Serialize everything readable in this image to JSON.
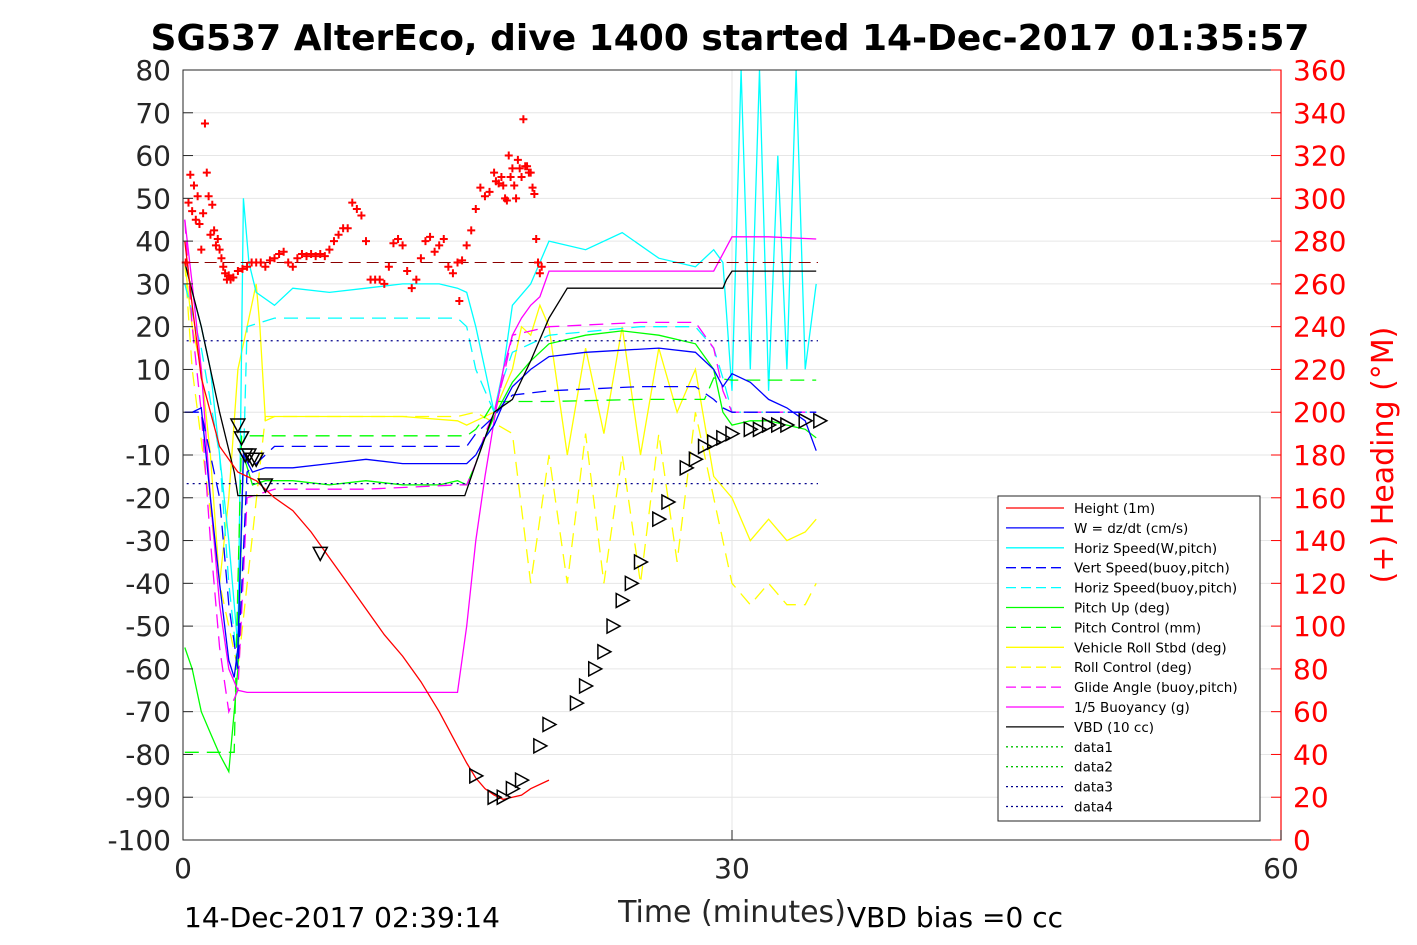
{
  "chart_data": {
    "type": "line",
    "title": "SG537 AlterEco, dive 1400 started 14-Dec-2017 01:35:57",
    "xlabel": "Time (minutes)",
    "ylabel_right": "(+) Heading (°M)",
    "footer_left": "14-Dec-2017 02:39:14",
    "footer_right": "VBD bias =0 cc",
    "xlim": [
      0,
      60
    ],
    "ylim": [
      -100,
      80
    ],
    "ylim_right": [
      0,
      360
    ],
    "x_ticks": [
      0,
      30,
      60
    ],
    "y_ticks": [
      -100,
      -90,
      -80,
      -70,
      -60,
      -50,
      -40,
      -30,
      -20,
      -10,
      0,
      10,
      20,
      30,
      40,
      50,
      60,
      70,
      80
    ],
    "y_ticks_right": [
      0,
      20,
      40,
      60,
      80,
      100,
      120,
      140,
      160,
      180,
      200,
      220,
      240,
      260,
      280,
      300,
      320,
      340,
      360
    ],
    "grid": true,
    "legend_position": "bottom-right",
    "colors": {
      "height": "#ff0000",
      "w": "#0000ff",
      "horiz_w": "#00ffff",
      "vert_buoy": "#0000ff",
      "horiz_buoy": "#00ffff",
      "pitch": "#00ff00",
      "pitch_ctrl": "#00ff00",
      "roll": "#ffff00",
      "roll_ctrl": "#ffff00",
      "glide": "#ff00ff",
      "buoy": "#ff00ff",
      "vbd": "#000000",
      "heading": "#ff0000",
      "axis_right": "#ff0000"
    },
    "legend": [
      "Height (1m)",
      "W = dz/dt (cm/s)",
      "Horiz Speed(W,pitch)",
      "Vert Speed(buoy,pitch)",
      "Horiz Speed(buoy,pitch)",
      "Pitch Up (deg)",
      "Pitch Control (mm)",
      "Vehicle Roll Stbd (deg)",
      "Roll Control (deg)",
      "Glide Angle (buoy,pitch)",
      "1/5 Buoyancy (g)",
      "VBD (10 cc)",
      "data1",
      "data2",
      "data3",
      "data4"
    ],
    "series": [
      {
        "key": "vbd",
        "x": [
          0.1,
          1.0,
          2.0,
          2.8,
          3.0,
          5.0,
          10.0,
          15.0,
          15.4,
          16.0,
          17.0,
          18.0,
          19.0,
          20.0,
          21.0,
          22.0,
          23.0,
          24.0,
          25.0,
          26.0,
          27.0,
          28.0,
          29.5,
          29.7,
          30.0,
          32.0,
          34.6
        ],
        "y": [
          35,
          20,
          0,
          -14,
          -19.5,
          -19.5,
          -19.5,
          -19.5,
          -19.5,
          -12,
          0,
          3,
          12,
          22,
          29,
          29,
          29,
          29,
          29,
          29,
          29,
          29,
          29,
          31,
          33,
          33,
          33
        ]
      },
      {
        "key": "buoy",
        "x": [
          0.1,
          0.5,
          1.0,
          1.5,
          2.0,
          2.5,
          3.0,
          3.5,
          5.0,
          10.0,
          15.0,
          15.5,
          16.0,
          16.5,
          17.0,
          17.5,
          18.0,
          18.5,
          19.0,
          19.5,
          20.0,
          22.0,
          26.0,
          29.0,
          30.0,
          32.0,
          34.6
        ],
        "y": [
          45,
          30,
          10,
          -20,
          -45,
          -60,
          -65,
          -65.5,
          -65.5,
          -65.5,
          -65.5,
          -50,
          -30,
          -15,
          -2,
          10,
          18,
          22,
          25,
          27,
          33,
          33,
          33,
          33,
          41,
          41,
          40.5
        ]
      },
      {
        "key": "height",
        "x": [
          0.1,
          0.5,
          1.0,
          2.0,
          3.0,
          4.0,
          5.0,
          6.0,
          7.0,
          8.0,
          9.0,
          10.0,
          11.0,
          12.0,
          13.0,
          14.0,
          15.0,
          15.5,
          16.0,
          16.5,
          17.0,
          17.5,
          18.0,
          18.5,
          19.0,
          20.0
        ],
        "y": [
          40,
          25,
          8,
          -8,
          -14,
          -16,
          -20,
          -23,
          -28,
          -34,
          -40,
          -46,
          -52,
          -57,
          -63,
          -70,
          -78,
          -82,
          -85.5,
          -88,
          -89.5,
          -90.5,
          -90,
          -89.5,
          -88,
          -86
        ]
      },
      {
        "key": "w",
        "x": [
          0.1,
          0.5,
          1.0,
          1.5,
          2.0,
          2.5,
          2.8,
          3.0,
          3.3,
          3.8,
          4.5,
          6.0,
          8.0,
          10.0,
          12.0,
          14.0,
          15.0,
          15.5,
          16.0,
          16.5,
          17.0,
          17.5,
          18.0,
          19.0,
          20.0,
          22.0,
          24.0,
          26.0,
          28.0,
          29.0,
          29.5,
          30.0,
          31.0,
          32.0,
          33.0,
          34.0,
          34.6
        ],
        "y": [
          0,
          0,
          1,
          -20,
          -40,
          -58,
          -62,
          -55,
          -10,
          -14,
          -13,
          -13,
          -12,
          -11,
          -12,
          -12,
          -12,
          -12,
          -10,
          -6,
          -3,
          2,
          6,
          10,
          13,
          14,
          14.5,
          15,
          14,
          10,
          6,
          9,
          7,
          3,
          1,
          -2,
          -9
        ]
      },
      {
        "key": "horiz_w",
        "x": [
          0.1,
          0.5,
          1.0,
          1.5,
          2.0,
          2.5,
          3.0,
          3.3,
          3.6,
          4.0,
          5.0,
          6.0,
          8.0,
          10.0,
          12.0,
          14.0,
          15.0,
          15.5,
          16.0,
          16.5,
          17.0,
          17.5,
          18.0,
          19.0,
          20.0,
          22.0,
          24.0,
          26.0,
          28.0,
          29.0,
          29.5,
          30.0,
          30.5,
          31.0,
          31.5,
          32.0,
          32.5,
          33.0,
          33.5,
          34.0,
          34.6
        ],
        "y": [
          35,
          28,
          20,
          10,
          -10,
          -30,
          -55,
          50,
          35,
          28,
          25,
          29,
          28,
          29,
          30,
          30,
          29,
          28,
          20,
          10,
          0,
          10,
          25,
          30,
          40,
          38,
          42,
          36,
          34,
          38,
          35,
          5,
          80,
          10,
          80,
          5,
          60,
          10,
          80,
          10,
          30
        ]
      },
      {
        "key": "vert_buoy",
        "x": [
          0.1,
          1.0,
          2.0,
          2.5,
          3.0,
          3.5,
          5.0,
          10.0,
          15.0,
          15.5,
          16.0,
          17.0,
          17.5,
          18.0,
          20.0,
          25.0,
          28.0,
          29.0,
          29.5,
          30.0,
          33.0,
          34.6
        ],
        "y": [
          0,
          0,
          -20,
          -45,
          -60,
          -14,
          -8,
          -8,
          -8,
          -8,
          -5,
          -1,
          2,
          4,
          5,
          6,
          6,
          3,
          1,
          0,
          0,
          0
        ]
      },
      {
        "key": "horiz_buoy",
        "x": [
          0.1,
          1.0,
          2.0,
          2.5,
          3.0,
          3.5,
          5.0,
          10.0,
          15.0,
          15.5,
          16.0,
          17.0,
          17.5,
          18.0,
          20.0,
          25.0,
          28.0,
          29.0,
          29.5,
          30.0,
          33.0,
          34.6
        ],
        "y": [
          30,
          15,
          -10,
          -40,
          -60,
          20,
          22,
          22,
          22,
          20,
          10,
          0,
          8,
          14,
          18,
          20,
          20,
          15,
          8,
          0,
          0,
          0
        ]
      },
      {
        "key": "pitch",
        "x": [
          0.1,
          0.5,
          1.0,
          1.5,
          2.0,
          2.5,
          2.8,
          3.0,
          3.3,
          3.8,
          4.5,
          6.0,
          8.0,
          10.0,
          12.0,
          14.0,
          15.0,
          15.5,
          16.0,
          16.5,
          17.0,
          17.5,
          18.0,
          19.0,
          20.0,
          22.0,
          24.0,
          26.0,
          28.0,
          29.0,
          29.5,
          30.0,
          31.0,
          32.0,
          33.0,
          34.0,
          34.6
        ],
        "y": [
          -55,
          -60,
          -70,
          -75,
          -80,
          -84,
          -70,
          -60,
          -10,
          -17,
          -16,
          -16,
          -17,
          -16,
          -17,
          -17,
          -16,
          -17,
          -12,
          -6,
          -1,
          3,
          7,
          12,
          16,
          18,
          19,
          18,
          16,
          10,
          0,
          -3,
          -2,
          -2,
          -3,
          -4,
          -6
        ]
      },
      {
        "key": "pitch_ctrl",
        "x": [
          0.1,
          0.5,
          2.8,
          3.0,
          3.2,
          5.0,
          10.0,
          15.0,
          15.5,
          16.0,
          16.5,
          17.0,
          20.0,
          25.0,
          28.0,
          28.5,
          29.0,
          30.0,
          34.6
        ],
        "y": [
          -79.5,
          -79.5,
          -79.5,
          -40,
          -5.5,
          -5.5,
          -5.5,
          -5.5,
          -5.5,
          -4,
          -1,
          2.5,
          2.5,
          3,
          3,
          3,
          8,
          7.5,
          7.5
        ]
      },
      {
        "key": "roll",
        "x": [
          0.1,
          0.5,
          1.0,
          1.5,
          2.0,
          2.5,
          3.0,
          3.5,
          4.0,
          4.2,
          4.5,
          5.0,
          8.0,
          12.0,
          15.0,
          15.5,
          16.0,
          17.0,
          18.0,
          18.5,
          19.0,
          19.5,
          20.0,
          21.0,
          22.0,
          23.0,
          24.0,
          25.0,
          26.0,
          27.0,
          28.0,
          29.0,
          30.0,
          31.0,
          32.0,
          33.0,
          34.0,
          34.6
        ],
        "y": [
          35,
          20,
          10,
          -10,
          -40,
          -20,
          10,
          20,
          30,
          20,
          -2,
          -1,
          -1,
          -1,
          -2,
          -3,
          -2,
          0,
          10,
          20,
          18,
          25,
          20,
          -10,
          15,
          -5,
          20,
          -10,
          15,
          0,
          10,
          -15,
          -20,
          -30,
          -25,
          -30,
          -28,
          -25
        ]
      },
      {
        "key": "roll_ctrl",
        "x": [
          0.1,
          0.5,
          2.0,
          3.0,
          4.5,
          5.0,
          15.0,
          16.0,
          18.0,
          19.0,
          20.0,
          21.0,
          22.0,
          23.0,
          24.0,
          25.0,
          26.0,
          27.0,
          28.0,
          29.0,
          30.0,
          31.0,
          32.0,
          33.0,
          34.0,
          34.6
        ],
        "y": [
          35,
          10,
          -40,
          -60,
          -1,
          -1,
          -1,
          0,
          -5,
          -40,
          -10,
          -40,
          -5,
          -40,
          -10,
          -40,
          -5,
          -35,
          0,
          -20,
          -40,
          -45,
          -40,
          -45,
          -45,
          -40
        ]
      },
      {
        "key": "glide",
        "x": [
          0.1,
          0.5,
          1.0,
          1.5,
          2.0,
          2.5,
          3.0,
          3.5,
          5.0,
          10.0,
          15.0,
          15.5,
          16.0,
          16.5,
          17.0,
          17.5,
          18.0,
          20.0,
          25.0,
          28.0,
          29.0,
          29.5,
          30.0,
          33.0,
          34.6
        ],
        "y": [
          45,
          20,
          0,
          -30,
          -55,
          -70,
          -65,
          -20,
          -18,
          -18,
          -17,
          -17,
          -12,
          -5,
          0,
          8,
          18,
          20,
          21,
          21,
          15,
          5,
          0,
          0,
          0
        ]
      }
    ],
    "heading_points": [
      [
        0.3,
        270
      ],
      [
        0.6,
        298
      ],
      [
        0.8,
        311
      ],
      [
        1.0,
        294
      ],
      [
        1.2,
        306
      ],
      [
        1.4,
        290
      ],
      [
        1.6,
        301
      ],
      [
        1.8,
        288
      ],
      [
        2.0,
        276
      ],
      [
        2.2,
        293
      ],
      [
        2.4,
        335
      ],
      [
        2.6,
        312
      ],
      [
        2.8,
        301
      ],
      [
        3.0,
        283
      ],
      [
        3.2,
        297
      ],
      [
        3.4,
        285
      ],
      [
        3.6,
        278
      ],
      [
        3.8,
        281
      ],
      [
        4.0,
        276
      ],
      [
        4.2,
        272
      ],
      [
        4.4,
        268
      ],
      [
        4.6,
        265
      ],
      [
        4.8,
        262
      ],
      [
        5.0,
        264
      ],
      [
        5.2,
        262
      ],
      [
        5.5,
        263
      ],
      [
        6.0,
        266
      ],
      [
        6.5,
        267
      ],
      [
        7.0,
        268
      ],
      [
        7.5,
        270
      ],
      [
        8.0,
        270
      ],
      [
        8.5,
        270
      ],
      [
        9.0,
        268
      ],
      [
        9.5,
        271
      ],
      [
        10.0,
        272
      ],
      [
        10.5,
        274
      ],
      [
        11.0,
        275
      ],
      [
        11.5,
        270
      ],
      [
        12.0,
        268
      ],
      [
        12.5,
        272
      ],
      [
        13.0,
        274
      ],
      [
        13.5,
        273
      ],
      [
        14.0,
        274
      ],
      [
        14.5,
        273
      ],
      [
        15.0,
        274
      ],
      [
        15.5,
        273
      ],
      [
        16.0,
        276
      ],
      [
        16.5,
        280
      ],
      [
        17.0,
        283
      ],
      [
        17.5,
        286
      ],
      [
        18.0,
        286
      ],
      [
        18.5,
        298
      ],
      [
        19.0,
        295
      ],
      [
        19.5,
        292
      ],
      [
        20.0,
        280
      ],
      [
        20.5,
        262
      ],
      [
        21.0,
        262
      ],
      [
        21.5,
        262
      ],
      [
        22.0,
        260
      ],
      [
        22.5,
        268
      ],
      [
        23.0,
        279
      ],
      [
        23.5,
        281
      ],
      [
        24.0,
        278
      ],
      [
        24.5,
        266
      ],
      [
        25.0,
        258
      ],
      [
        25.5,
        262
      ],
      [
        26.0,
        272
      ],
      [
        26.5,
        280
      ],
      [
        27.0,
        282
      ],
      [
        27.5,
        275
      ],
      [
        28.0,
        278
      ],
      [
        28.5,
        281
      ],
      [
        29.0,
        268
      ],
      [
        29.5,
        265
      ],
      [
        30.0,
        270
      ],
      [
        30.2,
        252
      ],
      [
        30.5,
        271
      ],
      [
        31.0,
        278
      ],
      [
        31.5,
        285
      ],
      [
        32.0,
        295
      ],
      [
        32.5,
        305
      ],
      [
        33.0,
        301
      ],
      [
        33.5,
        303
      ],
      [
        34.0,
        312
      ],
      [
        34.2,
        308
      ],
      [
        34.5,
        307
      ],
      [
        34.8,
        310
      ],
      [
        35.0,
        306
      ],
      [
        35.2,
        300
      ],
      [
        35.4,
        299
      ],
      [
        35.6,
        320
      ],
      [
        35.8,
        310
      ],
      [
        36.0,
        314
      ],
      [
        36.2,
        306
      ],
      [
        36.4,
        300
      ],
      [
        36.6,
        318
      ],
      [
        36.8,
        314
      ],
      [
        37.0,
        310
      ],
      [
        37.2,
        337
      ],
      [
        37.4,
        315
      ],
      [
        37.6,
        315
      ],
      [
        37.8,
        312
      ],
      [
        38.0,
        312
      ],
      [
        38.2,
        305
      ],
      [
        38.4,
        302
      ],
      [
        38.6,
        281
      ],
      [
        38.8,
        270
      ],
      [
        39.0,
        265
      ],
      [
        39.2,
        268
      ]
    ],
    "markers_down": [
      [
        3.0,
        -3
      ],
      [
        3.2,
        -6
      ],
      [
        3.4,
        -10
      ],
      [
        3.6,
        -10
      ],
      [
        3.8,
        -11
      ],
      [
        4.0,
        -11
      ],
      [
        4.5,
        -17
      ],
      [
        7.5,
        -33
      ]
    ],
    "markers_up": [
      [
        16.0,
        -85
      ],
      [
        17.0,
        -90
      ],
      [
        17.5,
        -90
      ],
      [
        18.0,
        -88
      ],
      [
        18.5,
        -86
      ],
      [
        19.5,
        -78
      ],
      [
        20.0,
        -73
      ],
      [
        21.5,
        -68
      ],
      [
        22.0,
        -64
      ],
      [
        22.5,
        -60
      ],
      [
        23.0,
        -56
      ],
      [
        23.5,
        -50
      ],
      [
        24.0,
        -44
      ],
      [
        24.5,
        -40
      ],
      [
        25.0,
        -35
      ],
      [
        26.0,
        -25
      ],
      [
        26.5,
        -21
      ],
      [
        27.5,
        -13
      ],
      [
        28.0,
        -11
      ],
      [
        28.5,
        -8
      ],
      [
        29.0,
        -7
      ],
      [
        29.5,
        -6
      ],
      [
        30.0,
        -5
      ],
      [
        31.0,
        -4
      ],
      [
        31.5,
        -4
      ],
      [
        32.0,
        -3
      ],
      [
        32.5,
        -3
      ],
      [
        33.0,
        -3
      ],
      [
        34.0,
        -2
      ],
      [
        34.8,
        -2
      ]
    ]
  }
}
